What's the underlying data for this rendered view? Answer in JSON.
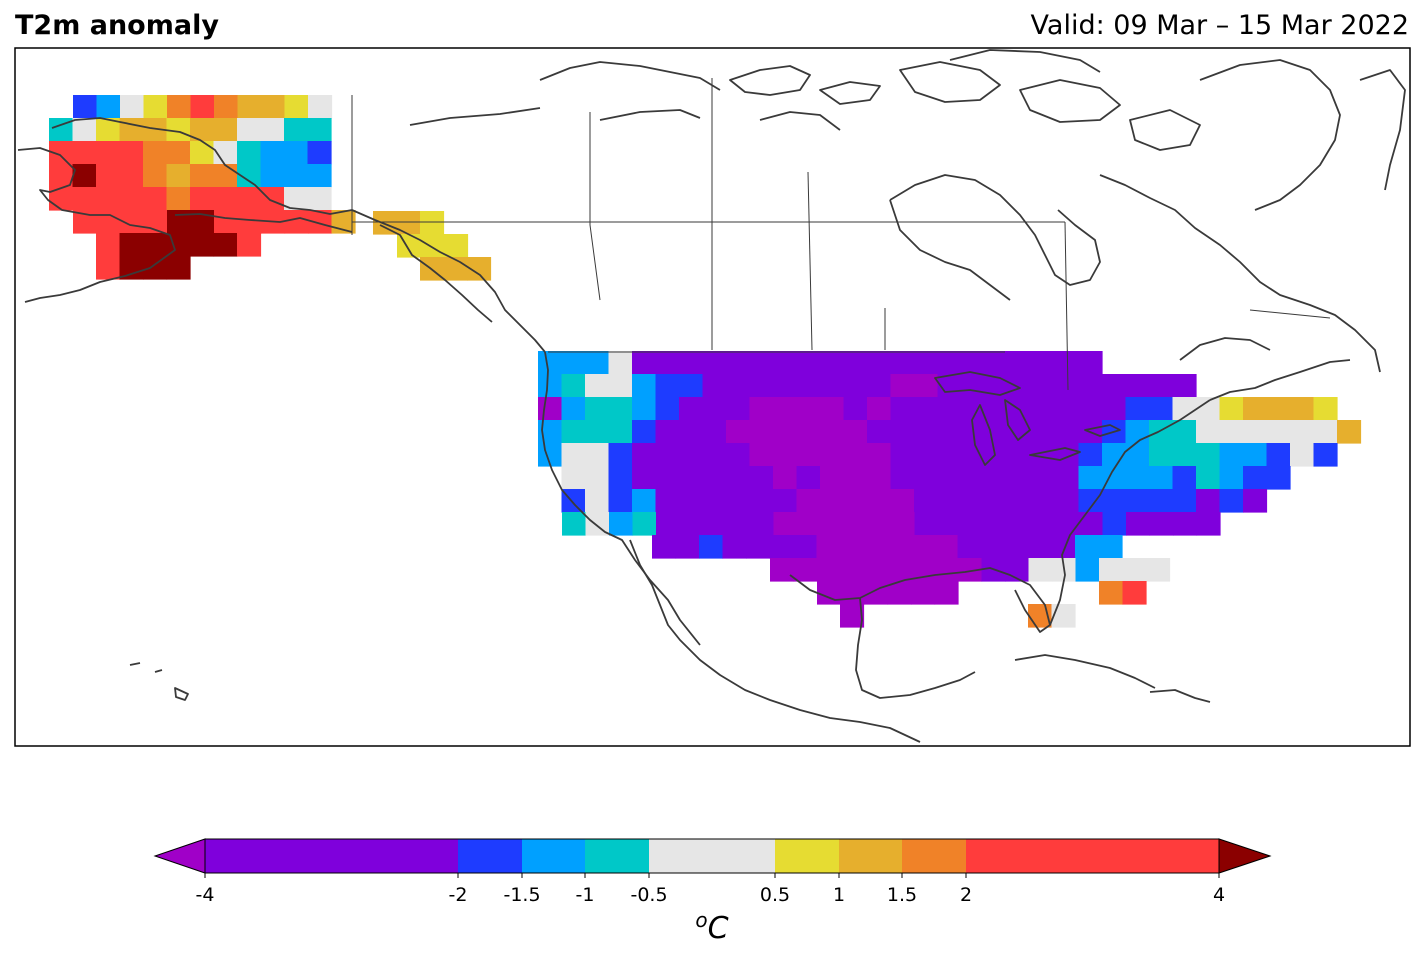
{
  "header": {
    "title": "T2m anomaly",
    "valid": "Valid: 09 Mar – 15 Mar 2022"
  },
  "colorbar": {
    "unit_prefix": "o",
    "unit_main": "C",
    "bins": [
      {
        "from": -4,
        "to": -2,
        "color": "#7f00dc"
      },
      {
        "from": -2,
        "to": -1.5,
        "color": "#1e3cff"
      },
      {
        "from": -1.5,
        "to": -1,
        "color": "#00a0ff"
      },
      {
        "from": -1,
        "to": -0.5,
        "color": "#00c8c8"
      },
      {
        "from": -0.5,
        "to": 0.5,
        "color": "#e6e6e6"
      },
      {
        "from": 0.5,
        "to": 1,
        "color": "#e6dc32"
      },
      {
        "from": 1,
        "to": 1.5,
        "color": "#e6af2d"
      },
      {
        "from": 1.5,
        "to": 2,
        "color": "#f08228"
      },
      {
        "from": 2,
        "to": 4,
        "color": "#ff3c3c"
      }
    ],
    "under_color": "#a000c8",
    "over_color": "#8b0000",
    "ticks": [
      "-4",
      "-2",
      "-1.5",
      "-1",
      "-0.5",
      "0.5",
      "1",
      "1.5",
      "2",
      "4"
    ]
  },
  "legend_colors": {
    "lt_m2": "#7f00dc",
    "m2_m15": "#1e3cff",
    "m15_m1": "#00a0ff",
    "m1_m05": "#00c8c8",
    "near0": "#e6e6e6",
    "p05_1": "#e6dc32",
    "p1_15": "#e6af2d",
    "p15_2": "#f08228",
    "p2_4": "#ff3c3c",
    "gt4": "#8b0000",
    "lt_m4": "#a000c8"
  }
}
